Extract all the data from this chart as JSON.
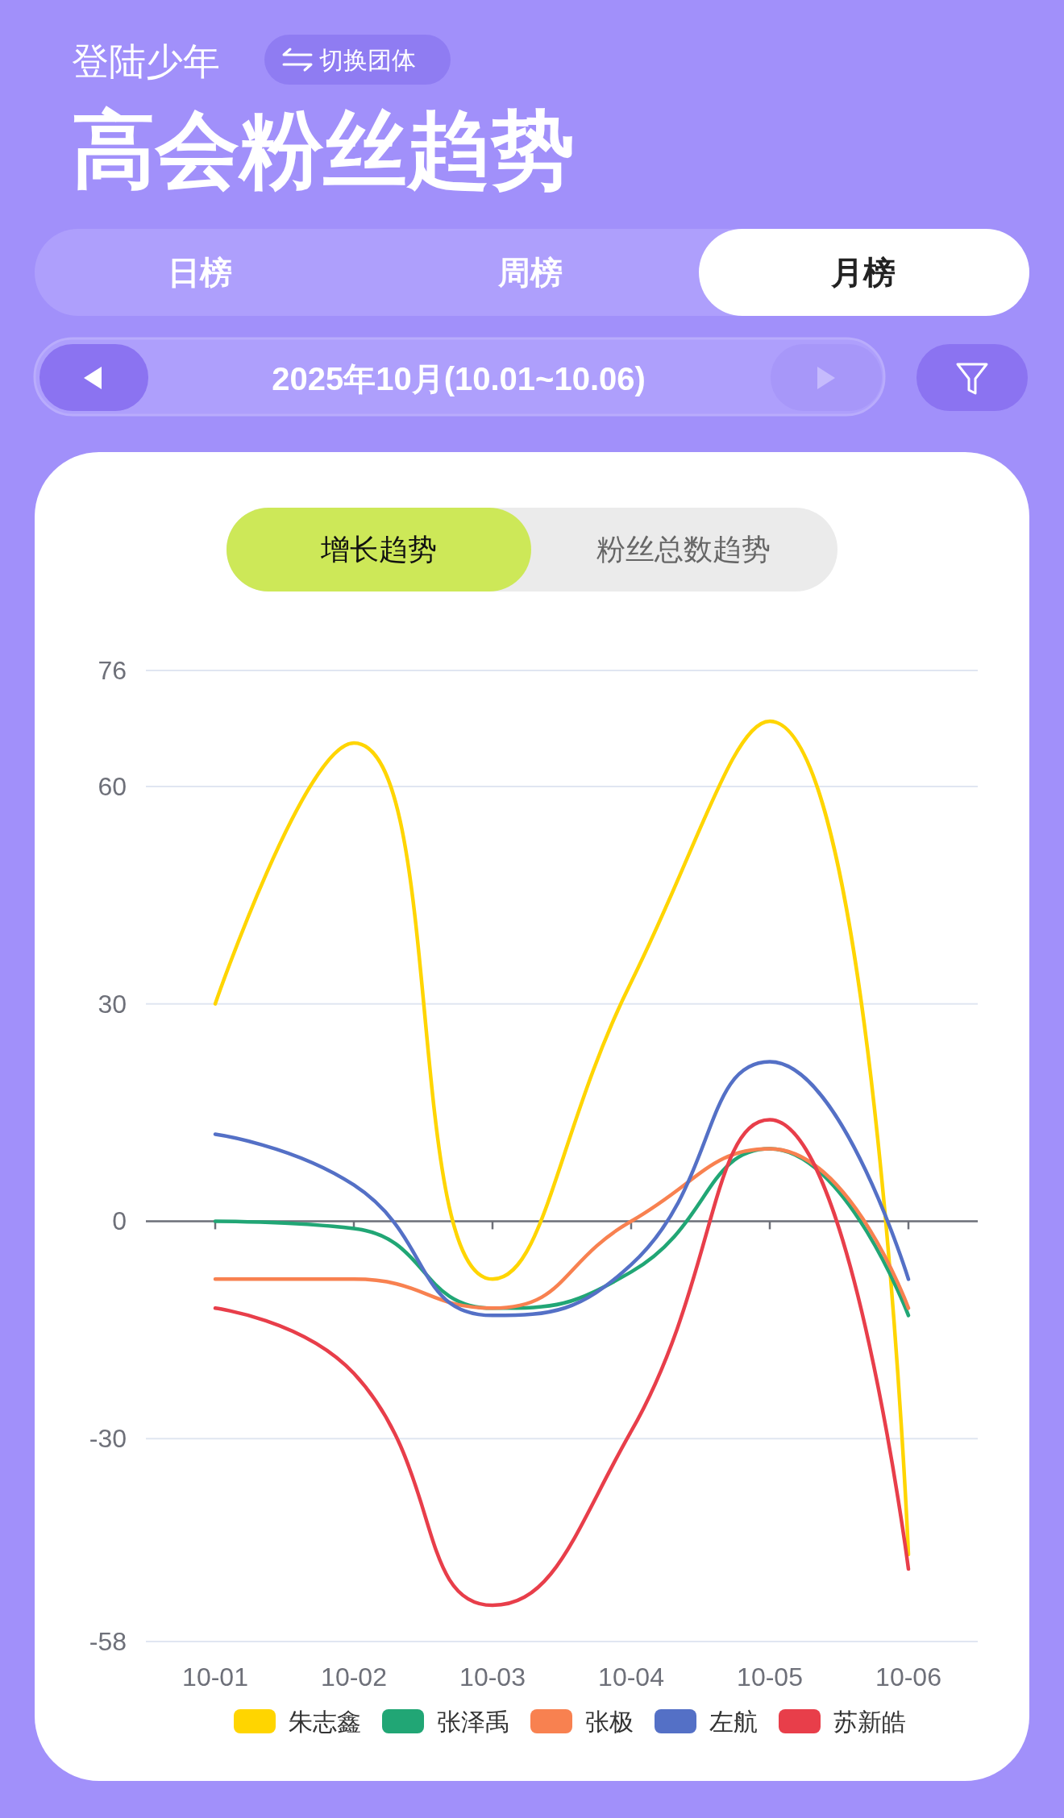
{
  "chart_data": {
    "type": "line",
    "title": "高会粉丝趋势",
    "subtitle": "登陆少年",
    "annotations": [
      "切换团体",
      "日榜",
      "周榜",
      "月榜",
      "2025年10月(10.01~10.06)",
      "增长趋势",
      "粉丝总数趋势"
    ],
    "categories": [
      "10-01",
      "10-02",
      "10-03",
      "10-04",
      "10-05",
      "10-06"
    ],
    "series": [
      {
        "name": "朱志鑫",
        "color": "#ffd500",
        "values": [
          30,
          66,
          -8,
          33,
          69,
          -46
        ]
      },
      {
        "name": "张泽禹",
        "color": "#21a675",
        "values": [
          0,
          -1,
          -12,
          -7,
          10,
          -13
        ]
      },
      {
        "name": "张极",
        "color": "#f88150",
        "values": [
          -8,
          -8,
          -12,
          0,
          10,
          -12
        ]
      },
      {
        "name": "左航",
        "color": "#5470c6",
        "values": [
          12,
          5,
          -13,
          -6,
          22,
          -8
        ]
      },
      {
        "name": "苏新皓",
        "color": "#e83e4a",
        "values": [
          -12,
          -21,
          -53,
          -29,
          14,
          -48
        ]
      }
    ],
    "ylim": [
      -58,
      76
    ],
    "yticks": [
      -58,
      -30,
      0,
      30,
      60,
      76
    ],
    "grid": "y",
    "legend": "bottom",
    "line_style": "solid"
  }
}
